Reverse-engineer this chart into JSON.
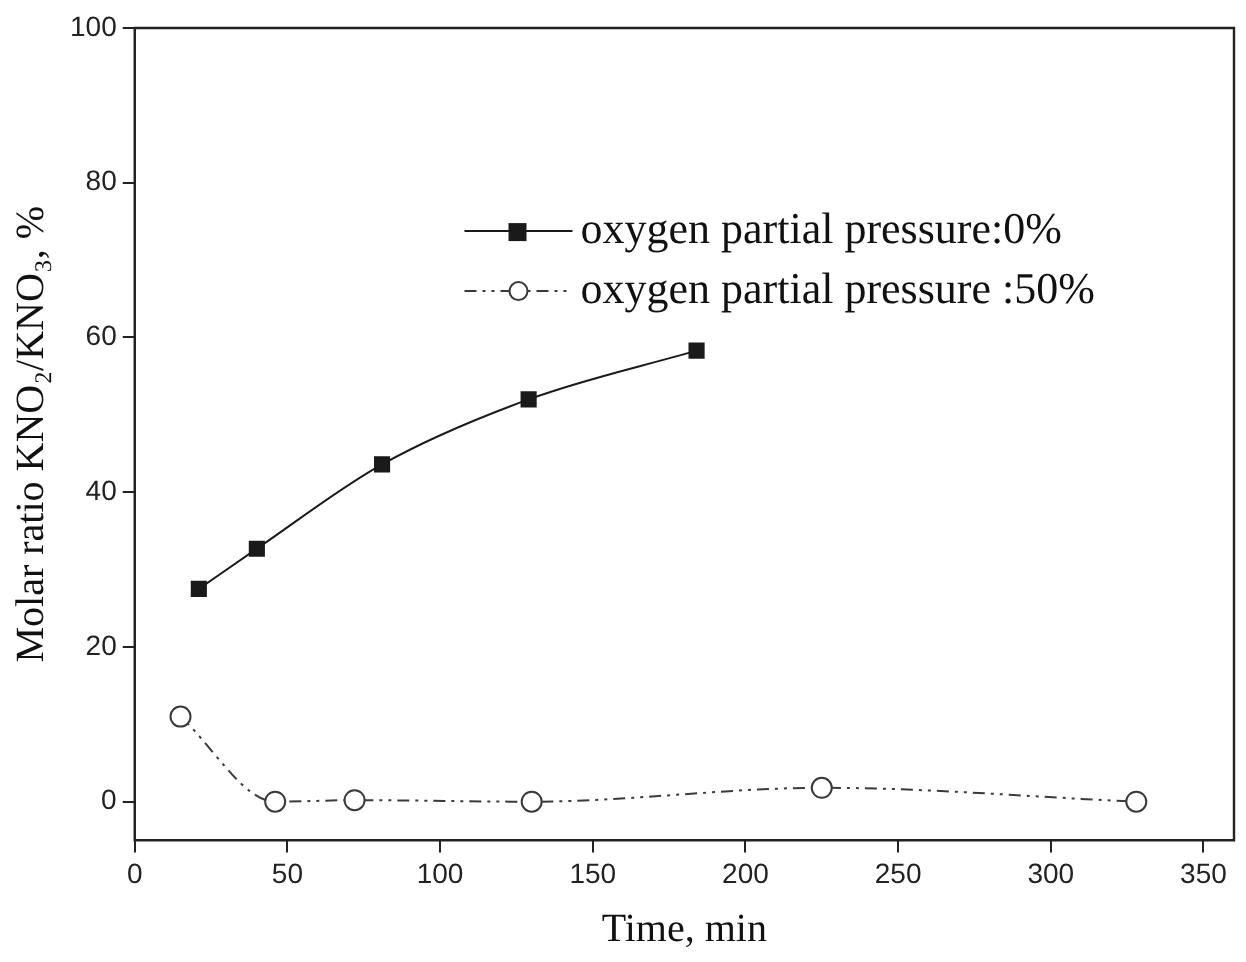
{
  "chart_data": {
    "type": "line",
    "xlabel": "Time, min",
    "ylabel": "Molar ratio KNO₂/KNO₃, %",
    "xlim": [
      0,
      360
    ],
    "xticks": [
      0,
      50,
      100,
      150,
      200,
      250,
      300,
      350
    ],
    "ylim": [
      -5,
      100
    ],
    "yticks": [
      0,
      20,
      40,
      60,
      80,
      100
    ],
    "grid": false,
    "legend": "top",
    "series": [
      {
        "name": "oxygen partial pressure:0%",
        "color": "#1a1a1a",
        "marker": "square",
        "line_style": "solid",
        "x": [
          21,
          40,
          81,
          129,
          184
        ],
        "values": [
          27.5,
          32.7,
          43.6,
          52,
          58.3
        ]
      },
      {
        "name": "oxygen partial pressure :50%",
        "color": "#3a3a3a",
        "marker": "circle",
        "line_style": "dashed",
        "x": [
          15,
          46,
          72,
          130,
          225,
          328
        ],
        "values": [
          11,
          0,
          0.2,
          0,
          1.8,
          0
        ]
      }
    ]
  }
}
